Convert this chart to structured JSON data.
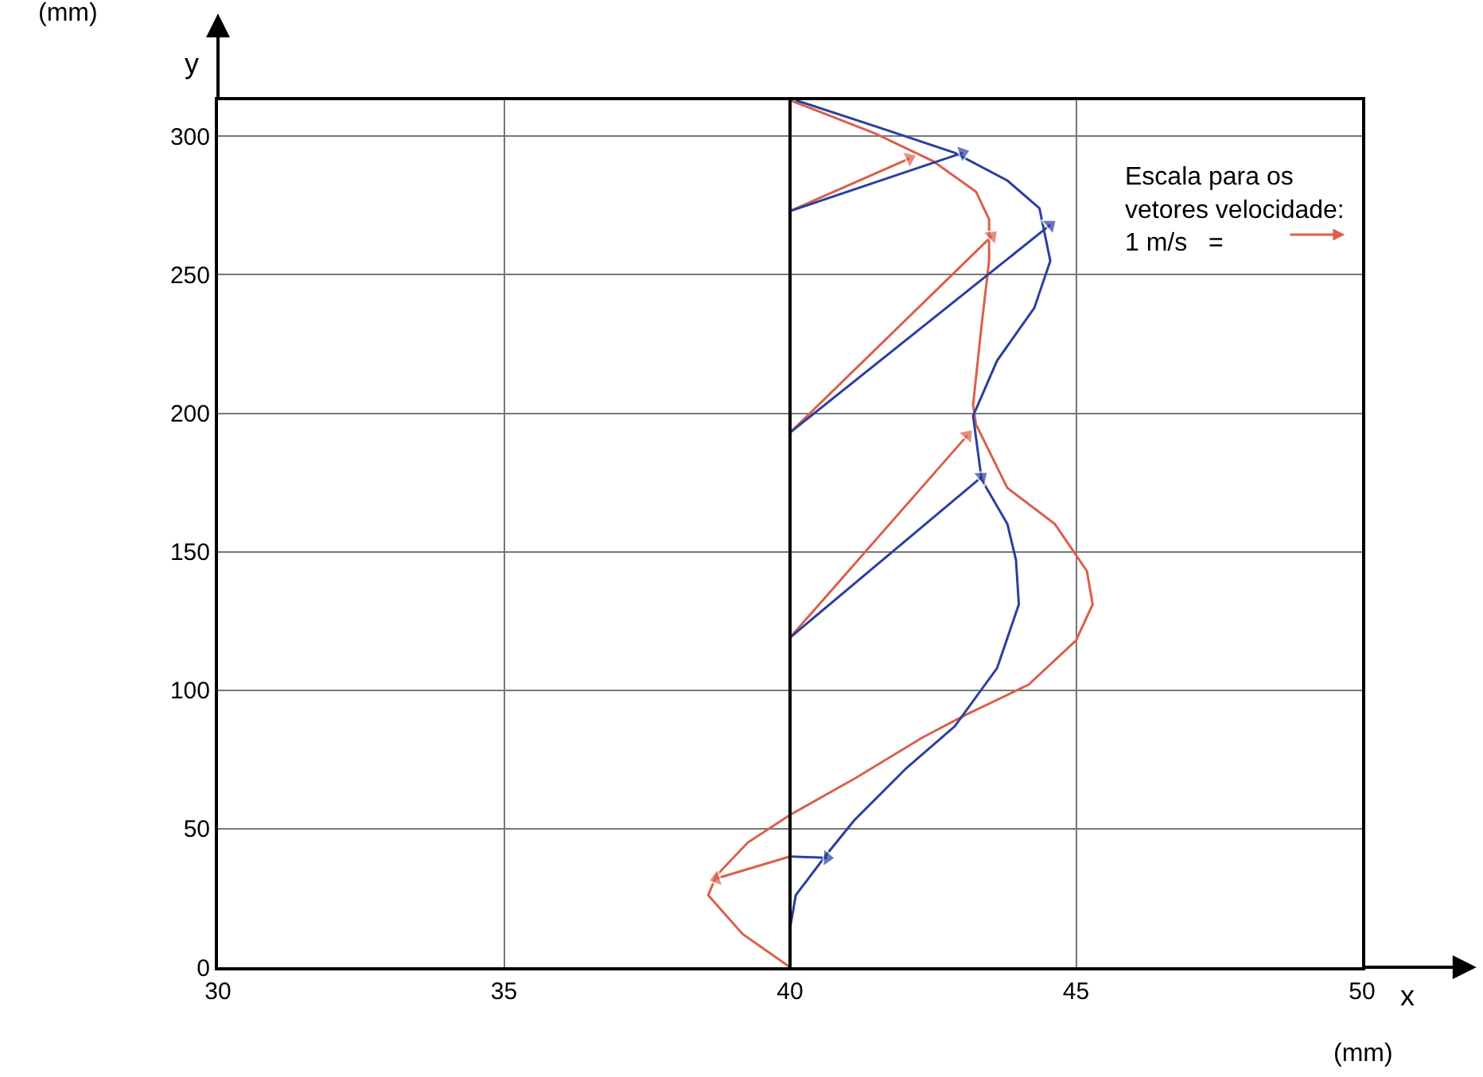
{
  "chart_data": {
    "type": "line",
    "xlabel": "x",
    "ylabel": "y",
    "xlim": [
      30,
      50
    ],
    "ylim": [
      0,
      313
    ],
    "xticks": [
      30,
      35,
      40,
      45,
      50
    ],
    "yticks": [
      0,
      50,
      100,
      150,
      200,
      250,
      300
    ],
    "grid": true,
    "line_style": "solid",
    "marker": "none",
    "ref_lines": [
      {
        "axis": "x",
        "value": 40,
        "color": "#000000"
      }
    ],
    "annotations": [
      "(mm)",
      "(mm)",
      "Escala para os\nvetores velocidade:\n1 m/s   ="
    ],
    "series": [
      {
        "color": "#d9604a",
        "x": [
          40.0,
          39.17,
          38.57,
          38.71,
          39.26,
          40.0,
          41.12,
          42.32,
          43.06,
          44.17,
          45.0,
          45.29,
          45.19,
          44.63,
          43.8,
          43.25,
          43.2,
          43.35,
          43.48,
          43.48,
          43.25,
          42.5,
          41.49,
          40.0
        ],
        "values": [
          0,
          12,
          26,
          33,
          45,
          55,
          68,
          83,
          91,
          102,
          118,
          131,
          143,
          160,
          173,
          196,
          203,
          232,
          255,
          270,
          280,
          291,
          301,
          313
        ]
      },
      {
        "color": "#2b3f9e",
        "x": [
          40.0,
          40.0,
          40.1,
          40.65,
          41.12,
          42.04,
          42.88,
          43.62,
          44.0,
          43.95,
          43.8,
          43.35,
          43.2,
          43.62,
          44.27,
          44.55,
          44.36,
          43.8,
          42.88,
          41.58,
          40.1
        ],
        "values": [
          0,
          14,
          26,
          41,
          53,
          72,
          87,
          108,
          131,
          147,
          160,
          176,
          199,
          219,
          238,
          255,
          274,
          284,
          294,
          303,
          313
        ]
      },
      {
        "color": "#d9604a",
        "type": "line",
        "marker": "triangle",
        "x": [
          40,
          42.09
        ],
        "values": [
          273,
          292
        ]
      },
      {
        "color": "#2b3f9e",
        "type": "line",
        "marker": "triangle",
        "x": [
          40,
          43.02
        ],
        "values": [
          273,
          294
        ]
      },
      {
        "color": "#d9604a",
        "type": "line",
        "marker": "triangle",
        "x": [
          40,
          43.53
        ],
        "values": [
          193,
          264
        ]
      },
      {
        "color": "#2b3f9e",
        "type": "line",
        "marker": "triangle",
        "x": [
          40,
          44.55
        ],
        "values": [
          193,
          268
        ]
      },
      {
        "color": "#d9604a",
        "type": "line",
        "marker": "triangle",
        "x": [
          40,
          43.1
        ],
        "values": [
          119,
          192
        ]
      },
      {
        "color": "#2b3f9e",
        "type": "line",
        "marker": "triangle",
        "x": [
          40,
          43.35
        ],
        "values": [
          119,
          177
        ]
      },
      {
        "color": "#d9604a",
        "type": "line",
        "marker": "triangle",
        "x": [
          40,
          38.71
        ],
        "values": [
          40,
          32
        ]
      },
      {
        "color": "#2b3f9e",
        "type": "line",
        "marker": "triangle",
        "x": [
          40,
          40.65
        ],
        "values": [
          40,
          39.5
        ]
      }
    ]
  }
}
